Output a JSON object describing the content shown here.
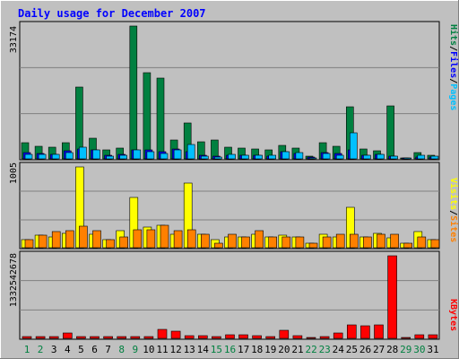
{
  "chart_data": [
    {
      "type": "bar",
      "title": "Daily usage for December 2007",
      "ylabel_parts": [
        "Pages",
        "Files",
        "Hits"
      ],
      "ylabel_sep": "/",
      "ymax_label": "33174",
      "ylim": [
        0,
        33174
      ],
      "grid": true,
      "categories": [
        "1",
        "2",
        "3",
        "4",
        "5",
        "6",
        "7",
        "8",
        "9",
        "10",
        "11",
        "12",
        "13",
        "14",
        "15",
        "16",
        "17",
        "18",
        "19",
        "20",
        "21",
        "22",
        "23",
        "24",
        "25",
        "26",
        "27",
        "28",
        "29",
        "30",
        "31"
      ],
      "weekend_days": [
        "1",
        "2",
        "8",
        "9",
        "15",
        "16",
        "22",
        "23",
        "29",
        "30"
      ],
      "series": [
        {
          "name": "Hits",
          "color": "#008040",
          "values": [
            3980,
            3100,
            2880,
            4100,
            17900,
            5190,
            2140,
            2770,
            33174,
            21600,
            20100,
            4800,
            8940,
            4300,
            4800,
            2900,
            2650,
            2390,
            2200,
            3310,
            2660,
            700,
            3980,
            3100,
            12990,
            2430,
            2120,
            13200,
            300,
            1500,
            1000
          ]
        },
        {
          "name": "Files",
          "color": "#0000ff",
          "values": [
            1500,
            1300,
            1200,
            2100,
            2500,
            2300,
            800,
            1100,
            2200,
            2300,
            1700,
            2500,
            1800,
            1000,
            600,
            1000,
            1000,
            800,
            700,
            1800,
            1400,
            400,
            1500,
            1300,
            2300,
            900,
            1200,
            600,
            100,
            500,
            400
          ]
        },
        {
          "name": "Pages",
          "color": "#00c0ff",
          "values": [
            1100,
            1100,
            1100,
            1500,
            3000,
            2300,
            700,
            1000,
            2200,
            1900,
            1300,
            2200,
            3500,
            700,
            400,
            1100,
            1000,
            900,
            800,
            1800,
            1500,
            300,
            1300,
            1000,
            6600,
            1000,
            1200,
            700,
            200,
            900,
            700
          ]
        }
      ]
    },
    {
      "type": "bar",
      "ylabel_parts": [
        "Sites",
        "Visits"
      ],
      "ylabel_sep": "/",
      "ymax_label": "1005",
      "ylim": [
        0,
        1005
      ],
      "grid": true,
      "series": [
        {
          "name": "Visits",
          "color": "#ffff00",
          "values": [
            95,
            151,
            137,
            181,
            1005,
            173,
            95,
            209,
            630,
            257,
            281,
            166,
            802,
            166,
            98,
            137,
            137,
            173,
            137,
            151,
            137,
            55,
            166,
            137,
            497,
            137,
            181,
            124,
            56,
            202,
            95
          ]
        },
        {
          "name": "Sites",
          "color": "#ff8000",
          "values": [
            95,
            151,
            202,
            210,
            273,
            210,
            98,
            137,
            223,
            225,
            281,
            209,
            220,
            166,
            55,
            166,
            137,
            209,
            137,
            137,
            137,
            55,
            137,
            173,
            166,
            137,
            173,
            166,
            56,
            137,
            95
          ]
        }
      ]
    },
    {
      "type": "bar",
      "ylabel_parts": [
        "KBytes"
      ],
      "ylabel_sep": "",
      "ymax_label": "1332542678",
      "ylim": [
        0,
        1332542678
      ],
      "grid": true,
      "series": [
        {
          "name": "KBytes",
          "color": "#ff0000",
          "values": [
            30000000,
            30000000,
            30000000,
            80000000,
            30000000,
            30000000,
            30000000,
            30000000,
            30000000,
            30000000,
            150000000,
            110000000,
            50000000,
            50000000,
            30000000,
            60000000,
            60000000,
            50000000,
            30000000,
            130000000,
            50000000,
            20000000,
            30000000,
            80000000,
            220000000,
            200000000,
            220000000,
            1332542678,
            10000000,
            60000000,
            60000000
          ]
        }
      ]
    }
  ]
}
